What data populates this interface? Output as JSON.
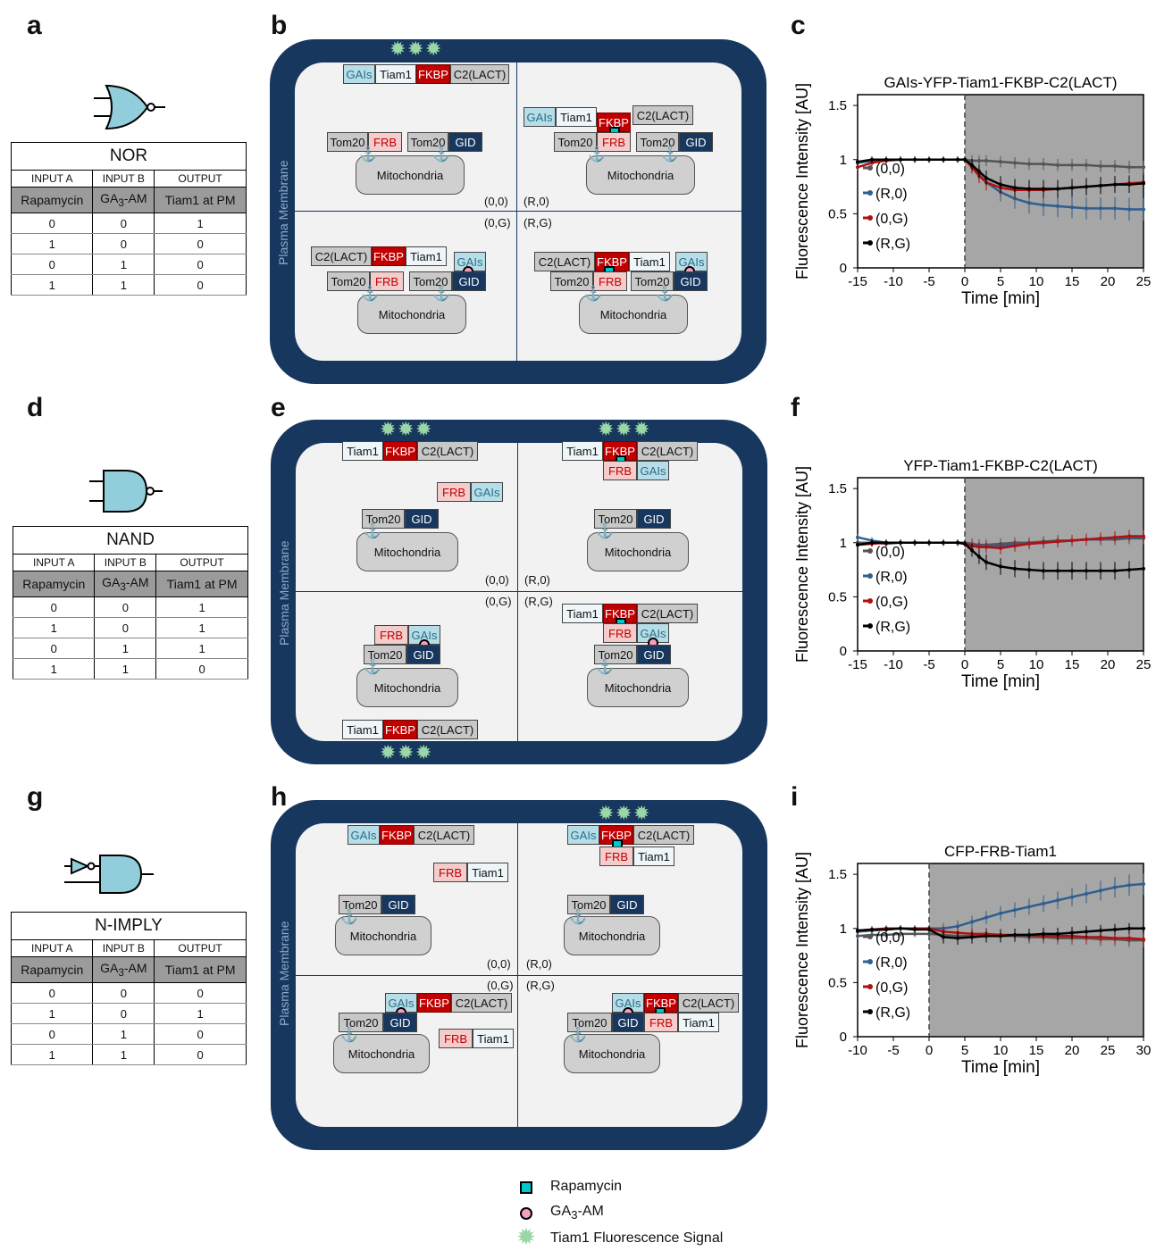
{
  "panels": {
    "a": "a",
    "b": "b",
    "c": "c",
    "d": "d",
    "e": "e",
    "f": "f",
    "g": "g",
    "h": "h",
    "i": "i"
  },
  "truth_tables": [
    {
      "gate": "NOR",
      "headers": [
        "INPUT  A",
        "INPUT B",
        "OUTPUT"
      ],
      "sub": [
        "Rapamycin",
        "GA3-AM",
        "Tiam1 at PM"
      ],
      "rows": [
        [
          "0",
          "0",
          "1"
        ],
        [
          "1",
          "0",
          "0"
        ],
        [
          "0",
          "1",
          "0"
        ],
        [
          "1",
          "1",
          "0"
        ]
      ]
    },
    {
      "gate": "NAND",
      "headers": [
        "INPUT  A",
        "INPUT B",
        "OUTPUT"
      ],
      "sub": [
        "Rapamycin",
        "GA3-AM",
        "Tiam1 at PM"
      ],
      "rows": [
        [
          "0",
          "0",
          "1"
        ],
        [
          "1",
          "0",
          "1"
        ],
        [
          "0",
          "1",
          "1"
        ],
        [
          "1",
          "1",
          "0"
        ]
      ]
    },
    {
      "gate": "N-IMPLY",
      "headers": [
        "INPUT  A",
        "INPUT B",
        "OUTPUT"
      ],
      "sub": [
        "Rapamycin",
        "GA3-AM",
        "Tiam1 at PM"
      ],
      "rows": [
        [
          "0",
          "0",
          "0"
        ],
        [
          "1",
          "0",
          "1"
        ],
        [
          "0",
          "1",
          "0"
        ],
        [
          "1",
          "1",
          "0"
        ]
      ]
    }
  ],
  "cell_diagram": {
    "plasma_membrane": "Plasma Membrane",
    "mitochondria": "Mitochondria",
    "quadrants": [
      "(0,0)",
      "(R,0)",
      "(0,G)",
      "(R,G)"
    ],
    "labels": {
      "gais": "GAIs",
      "tiam1": "Tiam1",
      "fkbp": "FKBP",
      "c2": "C2(LACT)",
      "tom20": "Tom20",
      "frb": "FRB",
      "gid": "GID"
    }
  },
  "legend": {
    "rapamycin": "Rapamycin",
    "ga3": "GA3-AM",
    "signal": "Tiam1 Fluorescence Signal"
  },
  "chart_data": [
    {
      "type": "line",
      "title": "GAIs-YFP-Tiam1-FKBP-C2(LACT)",
      "xlabel": "Time [min]",
      "ylabel": "Fluorescence  Intensity [AU]",
      "xlim": [
        -15,
        25
      ],
      "ylim": [
        0,
        1.6
      ],
      "xticks": [
        -15,
        -10,
        -5,
        0,
        5,
        10,
        15,
        20,
        25
      ],
      "yticks": [
        0,
        0.5,
        1,
        1.5
      ],
      "shaded_from": 0,
      "legend": "left-middle",
      "x": [
        -15,
        -13,
        -11,
        -9,
        -7,
        -5,
        -3,
        -1,
        0,
        1,
        2,
        3,
        5,
        7,
        9,
        11,
        13,
        15,
        17,
        19,
        21,
        23,
        25
      ],
      "series": [
        {
          "name": "(0,0)",
          "color": "#555555",
          "values": [
            0.97,
            0.99,
            1.0,
            1.0,
            1.0,
            1.0,
            1.0,
            1.0,
            1.0,
            0.99,
            0.99,
            0.99,
            0.98,
            0.97,
            0.96,
            0.96,
            0.95,
            0.95,
            0.95,
            0.94,
            0.94,
            0.93,
            0.93
          ]
        },
        {
          "name": "(R,0)",
          "color": "#2f5f8f",
          "values": [
            0.97,
            0.99,
            1.0,
            1.0,
            1.0,
            1.0,
            1.0,
            1.0,
            1.0,
            0.94,
            0.86,
            0.79,
            0.7,
            0.64,
            0.6,
            0.58,
            0.57,
            0.56,
            0.55,
            0.55,
            0.55,
            0.54,
            0.54
          ]
        },
        {
          "name": "(0,G)",
          "color": "#b01010",
          "values": [
            0.93,
            0.97,
            0.99,
            1.0,
            1.0,
            1.0,
            1.0,
            1.0,
            1.0,
            0.93,
            0.85,
            0.79,
            0.74,
            0.72,
            0.72,
            0.72,
            0.73,
            0.74,
            0.75,
            0.76,
            0.77,
            0.78,
            0.79
          ]
        },
        {
          "name": "(R,G)",
          "color": "#000000",
          "values": [
            0.98,
            1.0,
            1.0,
            1.0,
            1.0,
            1.0,
            1.0,
            1.0,
            1.0,
            0.95,
            0.89,
            0.83,
            0.77,
            0.74,
            0.73,
            0.73,
            0.73,
            0.74,
            0.75,
            0.76,
            0.77,
            0.77,
            0.78
          ]
        }
      ]
    },
    {
      "type": "line",
      "title": "YFP-Tiam1-FKBP-C2(LACT)",
      "xlabel": "Time [min]",
      "ylabel": "Fluorescence  Intensity [AU]",
      "xlim": [
        -15,
        25
      ],
      "ylim": [
        0,
        1.6
      ],
      "xticks": [
        -15,
        -10,
        -5,
        0,
        5,
        10,
        15,
        20,
        25
      ],
      "yticks": [
        0,
        0.5,
        1,
        1.5
      ],
      "shaded_from": 0,
      "legend": "left-middle",
      "x": [
        -15,
        -13,
        -11,
        -9,
        -7,
        -5,
        -3,
        -1,
        0,
        1,
        2,
        3,
        5,
        7,
        9,
        11,
        13,
        15,
        17,
        19,
        21,
        23,
        25
      ],
      "series": [
        {
          "name": "(0,0)",
          "color": "#555555",
          "values": [
            1.0,
            1.0,
            0.99,
            1.0,
            1.0,
            1.0,
            1.0,
            1.0,
            1.0,
            0.99,
            0.98,
            0.98,
            0.99,
            1.0,
            1.0,
            1.01,
            1.02,
            1.02,
            1.03,
            1.03,
            1.03,
            1.04,
            1.04
          ]
        },
        {
          "name": "(R,0)",
          "color": "#2f5f8f",
          "values": [
            1.05,
            1.02,
            1.0,
            1.0,
            1.0,
            1.0,
            1.0,
            1.0,
            0.99,
            0.98,
            0.97,
            0.97,
            0.97,
            0.98,
            0.99,
            1.0,
            1.01,
            1.02,
            1.03,
            1.03,
            1.04,
            1.05,
            1.05
          ]
        },
        {
          "name": "(0,G)",
          "color": "#b01010",
          "values": [
            0.98,
            0.99,
            1.0,
            1.0,
            1.0,
            1.0,
            1.0,
            1.0,
            0.99,
            0.97,
            0.96,
            0.96,
            0.95,
            0.97,
            0.99,
            1.0,
            1.01,
            1.02,
            1.03,
            1.04,
            1.05,
            1.06,
            1.06
          ]
        },
        {
          "name": "(R,G)",
          "color": "#000000",
          "values": [
            0.98,
            1.0,
            1.0,
            1.0,
            1.0,
            1.0,
            1.0,
            1.0,
            0.99,
            0.93,
            0.87,
            0.82,
            0.78,
            0.76,
            0.75,
            0.74,
            0.74,
            0.74,
            0.74,
            0.74,
            0.74,
            0.75,
            0.76
          ]
        }
      ]
    },
    {
      "type": "line",
      "title": "CFP-FRB-Tiam1",
      "xlabel": "Time [min]",
      "ylabel": "Fluorescence  Intensity [AU]",
      "xlim": [
        -10,
        30
      ],
      "ylim": [
        0,
        1.6
      ],
      "xticks": [
        -10,
        -5,
        0,
        5,
        10,
        15,
        20,
        25,
        30
      ],
      "yticks": [
        0,
        0.5,
        1,
        1.5
      ],
      "shaded_from": 0,
      "legend": "left-middle",
      "x": [
        -10,
        -8,
        -6,
        -4,
        -2,
        0,
        2,
        4,
        6,
        8,
        10,
        12,
        14,
        16,
        18,
        20,
        22,
        24,
        26,
        28,
        30
      ],
      "series": [
        {
          "name": "(0,0)",
          "color": "#555555",
          "values": [
            0.93,
            0.94,
            0.94,
            0.95,
            0.95,
            0.95,
            0.94,
            0.93,
            0.93,
            0.93,
            0.93,
            0.93,
            0.92,
            0.92,
            0.91,
            0.91,
            0.91,
            0.9,
            0.9,
            0.89,
            0.89
          ]
        },
        {
          "name": "(R,0)",
          "color": "#2f5f8f",
          "values": [
            0.97,
            0.98,
            0.99,
            1.0,
            1.0,
            1.0,
            1.0,
            1.02,
            1.06,
            1.1,
            1.14,
            1.17,
            1.2,
            1.23,
            1.26,
            1.29,
            1.32,
            1.35,
            1.38,
            1.4,
            1.41
          ]
        },
        {
          "name": "(0,G)",
          "color": "#b01010",
          "values": [
            0.98,
            0.99,
            1.0,
            1.0,
            1.0,
            1.0,
            0.97,
            0.96,
            0.95,
            0.95,
            0.94,
            0.94,
            0.94,
            0.93,
            0.93,
            0.93,
            0.92,
            0.92,
            0.91,
            0.91,
            0.9
          ]
        },
        {
          "name": "(R,G)",
          "color": "#000000",
          "values": [
            0.98,
            0.99,
            0.99,
            1.0,
            0.99,
            0.99,
            0.92,
            0.91,
            0.92,
            0.93,
            0.93,
            0.94,
            0.94,
            0.95,
            0.95,
            0.96,
            0.97,
            0.98,
            0.99,
            1.0,
            1.0
          ]
        }
      ]
    }
  ]
}
